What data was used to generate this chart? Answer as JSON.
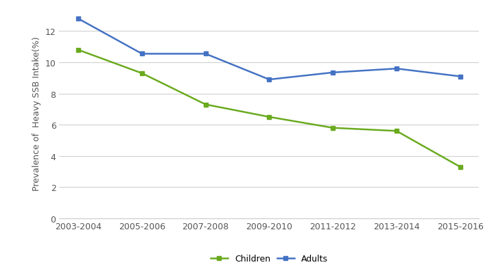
{
  "x_labels": [
    "2003-2004",
    "2005-2006",
    "2007-2008",
    "2009-2010",
    "2011-2012",
    "2013-2014",
    "2015-2016"
  ],
  "children_values": [
    10.8,
    9.3,
    7.3,
    6.5,
    5.8,
    5.6,
    3.3
  ],
  "adults_values": [
    12.8,
    10.55,
    10.55,
    8.9,
    9.35,
    9.6,
    9.1
  ],
  "children_color": "#6aaa1e",
  "adults_color": "#4472c4",
  "ylabel": "Prevalence of  Heavy SSB Intake(%)",
  "ylim": [
    0,
    13.5
  ],
  "yticks": [
    0,
    2,
    4,
    6,
    8,
    10,
    12
  ],
  "legend_labels": [
    "Children",
    "Adults"
  ],
  "background_color": "#ffffff",
  "plot_bg_color": "#ffffff",
  "grid_color": "#d0d0d0",
  "marker": "s",
  "marker_size": 5,
  "line_width": 1.8
}
